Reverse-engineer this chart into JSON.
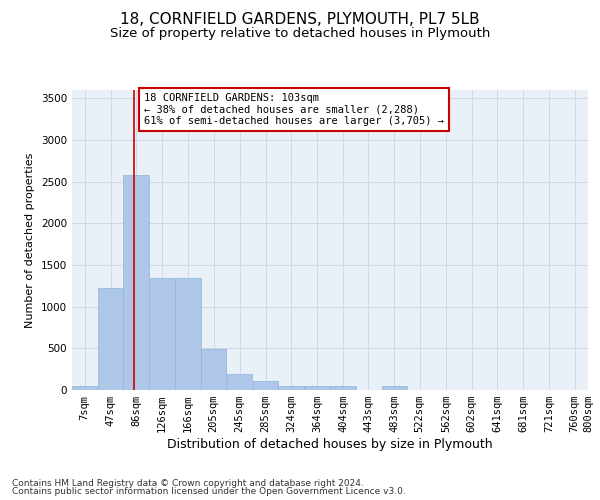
{
  "title": "18, CORNFIELD GARDENS, PLYMOUTH, PL7 5LB",
  "subtitle": "Size of property relative to detached houses in Plymouth",
  "xlabel": "Distribution of detached houses by size in Plymouth",
  "ylabel": "Number of detached properties",
  "bin_labels": [
    "7sqm",
    "47sqm",
    "86sqm",
    "126sqm",
    "166sqm",
    "205sqm",
    "245sqm",
    "285sqm",
    "324sqm",
    "364sqm",
    "404sqm",
    "443sqm",
    "483sqm",
    "522sqm",
    "562sqm",
    "602sqm",
    "641sqm",
    "681sqm",
    "721sqm",
    "760sqm",
    "800sqm"
  ],
  "bar_heights": [
    50,
    1225,
    2575,
    1340,
    1340,
    490,
    190,
    105,
    50,
    50,
    50,
    0,
    50,
    0,
    0,
    0,
    0,
    0,
    0,
    0
  ],
  "bar_color": "#aec6e8",
  "bar_edge_color": "#8eb4d8",
  "grid_color": "#d0d8e8",
  "background_color": "#eaf0f8",
  "annotation_box_color": "#ffffff",
  "annotation_box_edge": "#cc0000",
  "annotation_line_color": "#cc0000",
  "annotation_text_line1": "18 CORNFIELD GARDENS: 103sqm",
  "annotation_text_line2": "← 38% of detached houses are smaller (2,288)",
  "annotation_text_line3": "61% of semi-detached houses are larger (3,705) →",
  "property_line_x": 103,
  "ylim": [
    0,
    3600
  ],
  "yticks": [
    0,
    500,
    1000,
    1500,
    2000,
    2500,
    3000,
    3500
  ],
  "footer_line1": "Contains HM Land Registry data © Crown copyright and database right 2024.",
  "footer_line2": "Contains public sector information licensed under the Open Government Licence v3.0.",
  "title_fontsize": 11,
  "subtitle_fontsize": 9.5,
  "xlabel_fontsize": 9,
  "ylabel_fontsize": 8,
  "annotation_fontsize": 7.5,
  "footer_fontsize": 6.5,
  "tick_fontsize": 7.5
}
